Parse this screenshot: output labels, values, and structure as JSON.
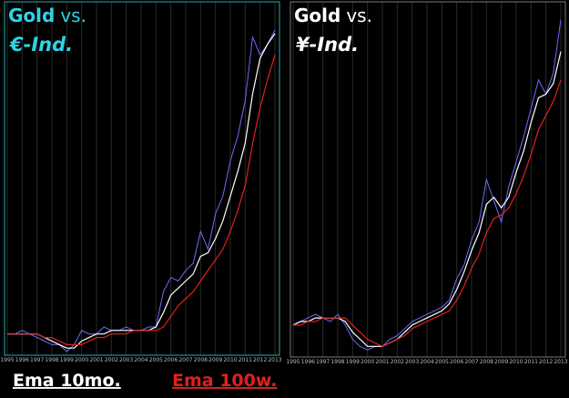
{
  "chart_data": [
    {
      "type": "line",
      "title": [
        "Gold",
        "vs.",
        "€-Ind."
      ],
      "title_color": "#2fd3e6",
      "frame_color": "#2aa8a8",
      "xlim": [
        1995,
        2013
      ],
      "ylim": [
        0,
        100
      ],
      "grid": true,
      "xticks": [
        1995,
        1996,
        1997,
        1998,
        1999,
        2000,
        2001,
        2002,
        2003,
        2004,
        2005,
        2006,
        2007,
        2008,
        2009,
        2010,
        2011,
        2012,
        2013
      ],
      "x": [
        1995,
        1995.5,
        1996,
        1996.5,
        1997,
        1997.5,
        1998,
        1998.5,
        1999,
        1999.5,
        2000,
        2000.5,
        2001,
        2001.5,
        2002,
        2002.5,
        2003,
        2003.5,
        2004,
        2004.5,
        2005,
        2005.5,
        2006,
        2006.5,
        2007,
        2007.5,
        2008,
        2008.5,
        2009,
        2009.5,
        2010,
        2010.5,
        2011,
        2011.5,
        2012,
        2012.5,
        2013
      ],
      "series": [
        {
          "color": "#6b6bff",
          "values": [
            6,
            6,
            7,
            6,
            5,
            4,
            3,
            3,
            1,
            3,
            7,
            6,
            6,
            8,
            7,
            7,
            8,
            7,
            7,
            8,
            8,
            18,
            22,
            21,
            24,
            26,
            35,
            30,
            40,
            45,
            55,
            62,
            72,
            90,
            85,
            88,
            92
          ]
        },
        {
          "name": "Ema 10mo.",
          "color": "#ffffff",
          "values": [
            6,
            6,
            6,
            6,
            6,
            5,
            4,
            3,
            2,
            2,
            4,
            5,
            6,
            6,
            7,
            7,
            7,
            7,
            7,
            7,
            8,
            12,
            17,
            19,
            21,
            23,
            28,
            29,
            33,
            38,
            45,
            52,
            60,
            74,
            84,
            88,
            91
          ]
        },
        {
          "name": "Ema 100w.",
          "color": "#e0201e",
          "values": [
            6,
            6,
            6,
            6,
            6,
            5,
            5,
            4,
            3,
            3,
            3,
            4,
            5,
            5,
            6,
            6,
            6,
            7,
            7,
            7,
            7,
            8,
            11,
            14,
            16,
            18,
            21,
            24,
            27,
            30,
            35,
            41,
            48,
            60,
            70,
            78,
            85
          ]
        }
      ]
    },
    {
      "type": "line",
      "title": [
        "Gold",
        "vs.",
        "¥-Ind."
      ],
      "title_color": "#ffffff",
      "frame_color": "#777777",
      "xlim": [
        1995,
        2013
      ],
      "ylim": [
        0,
        100
      ],
      "grid": true,
      "xticks": [
        1995,
        1996,
        1997,
        1998,
        1999,
        2000,
        2001,
        2002,
        2003,
        2004,
        2005,
        2006,
        2007,
        2008,
        2009,
        2010,
        2011,
        2012,
        2013
      ],
      "x": [
        1995,
        1995.5,
        1996,
        1996.5,
        1997,
        1997.5,
        1998,
        1998.5,
        1999,
        1999.5,
        2000,
        2000.5,
        2001,
        2001.5,
        2002,
        2002.5,
        2003,
        2003.5,
        2004,
        2004.5,
        2005,
        2005.5,
        2006,
        2006.5,
        2007,
        2007.5,
        2008,
        2008.5,
        2009,
        2009.5,
        2010,
        2010.5,
        2011,
        2011.5,
        2012,
        2012.5,
        2013
      ],
      "series": [
        {
          "color": "#6b6bff",
          "values": [
            9,
            10,
            11,
            12,
            11,
            10,
            12,
            9,
            5,
            3,
            2,
            3,
            3,
            5,
            6,
            8,
            10,
            11,
            12,
            13,
            14,
            16,
            22,
            26,
            33,
            38,
            50,
            44,
            38,
            48,
            55,
            62,
            70,
            78,
            74,
            80,
            95
          ]
        },
        {
          "color": "#ffffff",
          "values": [
            9,
            10,
            10,
            11,
            11,
            11,
            11,
            10,
            7,
            5,
            3,
            3,
            3,
            4,
            5,
            7,
            9,
            10,
            11,
            12,
            13,
            15,
            19,
            24,
            30,
            35,
            43,
            45,
            42,
            45,
            52,
            58,
            66,
            73,
            74,
            77,
            86
          ]
        },
        {
          "color": "#e0201e",
          "values": [
            9,
            9,
            10,
            10,
            11,
            11,
            11,
            11,
            9,
            7,
            5,
            4,
            3,
            4,
            5,
            6,
            8,
            9,
            10,
            11,
            12,
            13,
            16,
            20,
            25,
            29,
            35,
            39,
            40,
            42,
            46,
            51,
            57,
            64,
            68,
            72,
            78
          ]
        }
      ]
    }
  ]
}
